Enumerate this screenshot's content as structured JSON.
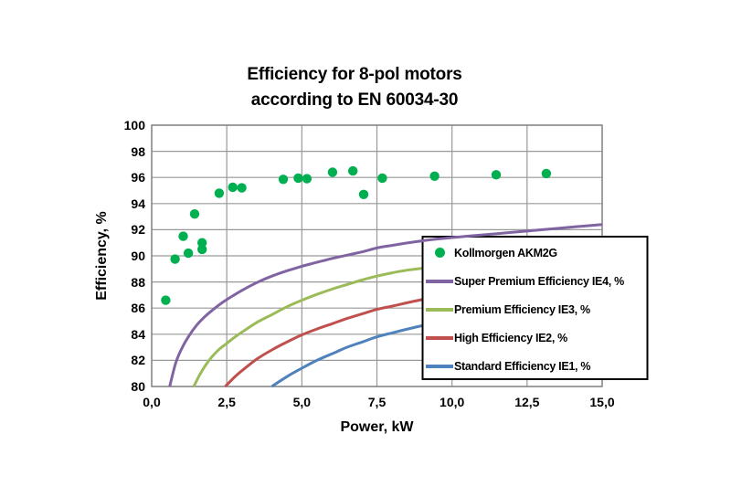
{
  "header": {
    "title_line1": "Efficiency for 8-pol motors",
    "title_line2": "according to EN 60034-30"
  },
  "chart_data": {
    "type": "scatter",
    "title": "Efficiency for 8-pol motors according to EN 60034-30",
    "xlabel": "Power, kW",
    "ylabel": "Efficiency, %",
    "xlim": [
      0,
      15
    ],
    "ylim": [
      80,
      100
    ],
    "grid": true,
    "legend_position": "inside-right",
    "x_ticks": {
      "values": [
        0,
        2.5,
        5,
        7.5,
        10,
        12.5,
        15
      ],
      "labels": [
        "0,0",
        "2,5",
        "5,0",
        "7,5",
        "10,0",
        "12,5",
        "15,0"
      ]
    },
    "y_ticks": {
      "values": [
        100,
        98,
        96,
        94,
        92,
        90,
        88,
        86,
        84,
        82,
        80
      ],
      "labels": [
        "100",
        "98",
        "96",
        "94",
        "92",
        "90",
        "88",
        "86",
        "84",
        "82",
        "80"
      ]
    },
    "scatter": {
      "name": "Kollmorgen AKM2G",
      "color": "#00B050",
      "points": [
        [
          0.47,
          86.6
        ],
        [
          0.78,
          89.75
        ],
        [
          1.05,
          91.5
        ],
        [
          1.22,
          90.2
        ],
        [
          1.43,
          93.2
        ],
        [
          1.68,
          91.0
        ],
        [
          1.68,
          90.5
        ],
        [
          2.25,
          94.8
        ],
        [
          2.7,
          95.25
        ],
        [
          3.0,
          95.2
        ],
        [
          4.38,
          95.85
        ],
        [
          4.88,
          95.95
        ],
        [
          5.17,
          95.9
        ],
        [
          6.02,
          96.4
        ],
        [
          6.7,
          96.5
        ],
        [
          7.06,
          94.7
        ],
        [
          7.68,
          95.95
        ],
        [
          9.42,
          96.1
        ],
        [
          11.47,
          96.2
        ],
        [
          13.14,
          96.3
        ]
      ]
    },
    "series": [
      {
        "name": "Super Premium Efficiency IE4, %",
        "color": "#8064A2",
        "points": [
          [
            0.6,
            80
          ],
          [
            0.8,
            81.8
          ],
          [
            1.0,
            82.9
          ],
          [
            1.25,
            83.9
          ],
          [
            1.5,
            84.7
          ],
          [
            1.75,
            85.3
          ],
          [
            2.0,
            85.8
          ],
          [
            2.25,
            86.25
          ],
          [
            2.5,
            86.65
          ],
          [
            3.0,
            87.35
          ],
          [
            3.5,
            87.95
          ],
          [
            4.0,
            88.45
          ],
          [
            4.5,
            88.85
          ],
          [
            5.0,
            89.2
          ],
          [
            5.5,
            89.5
          ],
          [
            6.0,
            89.8
          ],
          [
            6.5,
            90.05
          ],
          [
            7.0,
            90.3
          ],
          [
            7.5,
            90.6
          ],
          [
            8.0,
            90.8
          ],
          [
            9.0,
            91.15
          ],
          [
            10.0,
            91.4
          ],
          [
            11.0,
            91.6
          ],
          [
            12.0,
            91.8
          ],
          [
            13.0,
            92.0
          ],
          [
            14.0,
            92.2
          ],
          [
            15.0,
            92.4
          ]
        ]
      },
      {
        "name": "Premium Efficiency IE3, %",
        "color": "#9BBB59",
        "points": [
          [
            1.4,
            80
          ],
          [
            1.6,
            80.9
          ],
          [
            1.8,
            81.65
          ],
          [
            2.0,
            82.25
          ],
          [
            2.25,
            82.85
          ],
          [
            2.5,
            83.3
          ],
          [
            2.75,
            83.75
          ],
          [
            3.0,
            84.15
          ],
          [
            3.5,
            84.9
          ],
          [
            4.0,
            85.5
          ],
          [
            4.5,
            86.1
          ],
          [
            5.0,
            86.6
          ],
          [
            5.5,
            87.05
          ],
          [
            6.0,
            87.45
          ],
          [
            6.5,
            87.8
          ],
          [
            7.0,
            88.15
          ],
          [
            7.5,
            88.45
          ],
          [
            8.0,
            88.7
          ],
          [
            8.5,
            88.9
          ],
          [
            9.0,
            89.05
          ],
          [
            10.0,
            89.4
          ],
          [
            11.0,
            89.7
          ],
          [
            12.0,
            90.0
          ],
          [
            13.0,
            90.2
          ],
          [
            14.0,
            90.4
          ],
          [
            15.0,
            90.6
          ]
        ]
      },
      {
        "name": "High Efficiency IE2, %",
        "color": "#C0504D",
        "points": [
          [
            2.45,
            80
          ],
          [
            2.75,
            80.7
          ],
          [
            3.0,
            81.2
          ],
          [
            3.5,
            82.1
          ],
          [
            4.0,
            82.8
          ],
          [
            4.5,
            83.4
          ],
          [
            5.0,
            83.95
          ],
          [
            5.5,
            84.4
          ],
          [
            6.0,
            84.8
          ],
          [
            6.5,
            85.2
          ],
          [
            7.0,
            85.55
          ],
          [
            7.5,
            85.9
          ],
          [
            8.0,
            86.15
          ],
          [
            9.0,
            86.65
          ],
          [
            10.0,
            87.1
          ],
          [
            11.0,
            87.45
          ],
          [
            12.0,
            87.8
          ],
          [
            13.0,
            88.1
          ],
          [
            14.0,
            88.35
          ],
          [
            15.0,
            88.6
          ]
        ]
      },
      {
        "name": "Standard Efficiency IE1, %",
        "color": "#4F81BD",
        "points": [
          [
            4.0,
            80
          ],
          [
            4.5,
            80.75
          ],
          [
            5.0,
            81.4
          ],
          [
            5.5,
            82.0
          ],
          [
            6.0,
            82.5
          ],
          [
            6.5,
            83.0
          ],
          [
            7.0,
            83.4
          ],
          [
            7.5,
            83.8
          ],
          [
            8.0,
            84.1
          ],
          [
            9.0,
            84.65
          ],
          [
            10.0,
            85.1
          ],
          [
            11.0,
            85.5
          ],
          [
            12.0,
            85.9
          ],
          [
            13.0,
            86.2
          ],
          [
            14.0,
            86.5
          ],
          [
            15.0,
            86.8
          ]
        ]
      }
    ],
    "legend": [
      {
        "label": "Kollmorgen AKM2G",
        "marker": "circle",
        "color": "#00B050"
      },
      {
        "label": "Super Premium Efficiency IE4, %",
        "marker": "line",
        "color": "#8064A2"
      },
      {
        "label": "Premium Efficiency IE3, %",
        "marker": "line",
        "color": "#9BBB59"
      },
      {
        "label": "High Efficiency IE2, %",
        "marker": "line",
        "color": "#C0504D"
      },
      {
        "label": "Standard Efficiency IE1, %",
        "marker": "line",
        "color": "#4F81BD"
      }
    ]
  },
  "colors": {
    "background": "#FFFFFF",
    "text": "#000000",
    "gridline": "#999999",
    "plot_border": "#808080",
    "legend_border": "#000000",
    "legend_fill": "#FFFFFF"
  }
}
